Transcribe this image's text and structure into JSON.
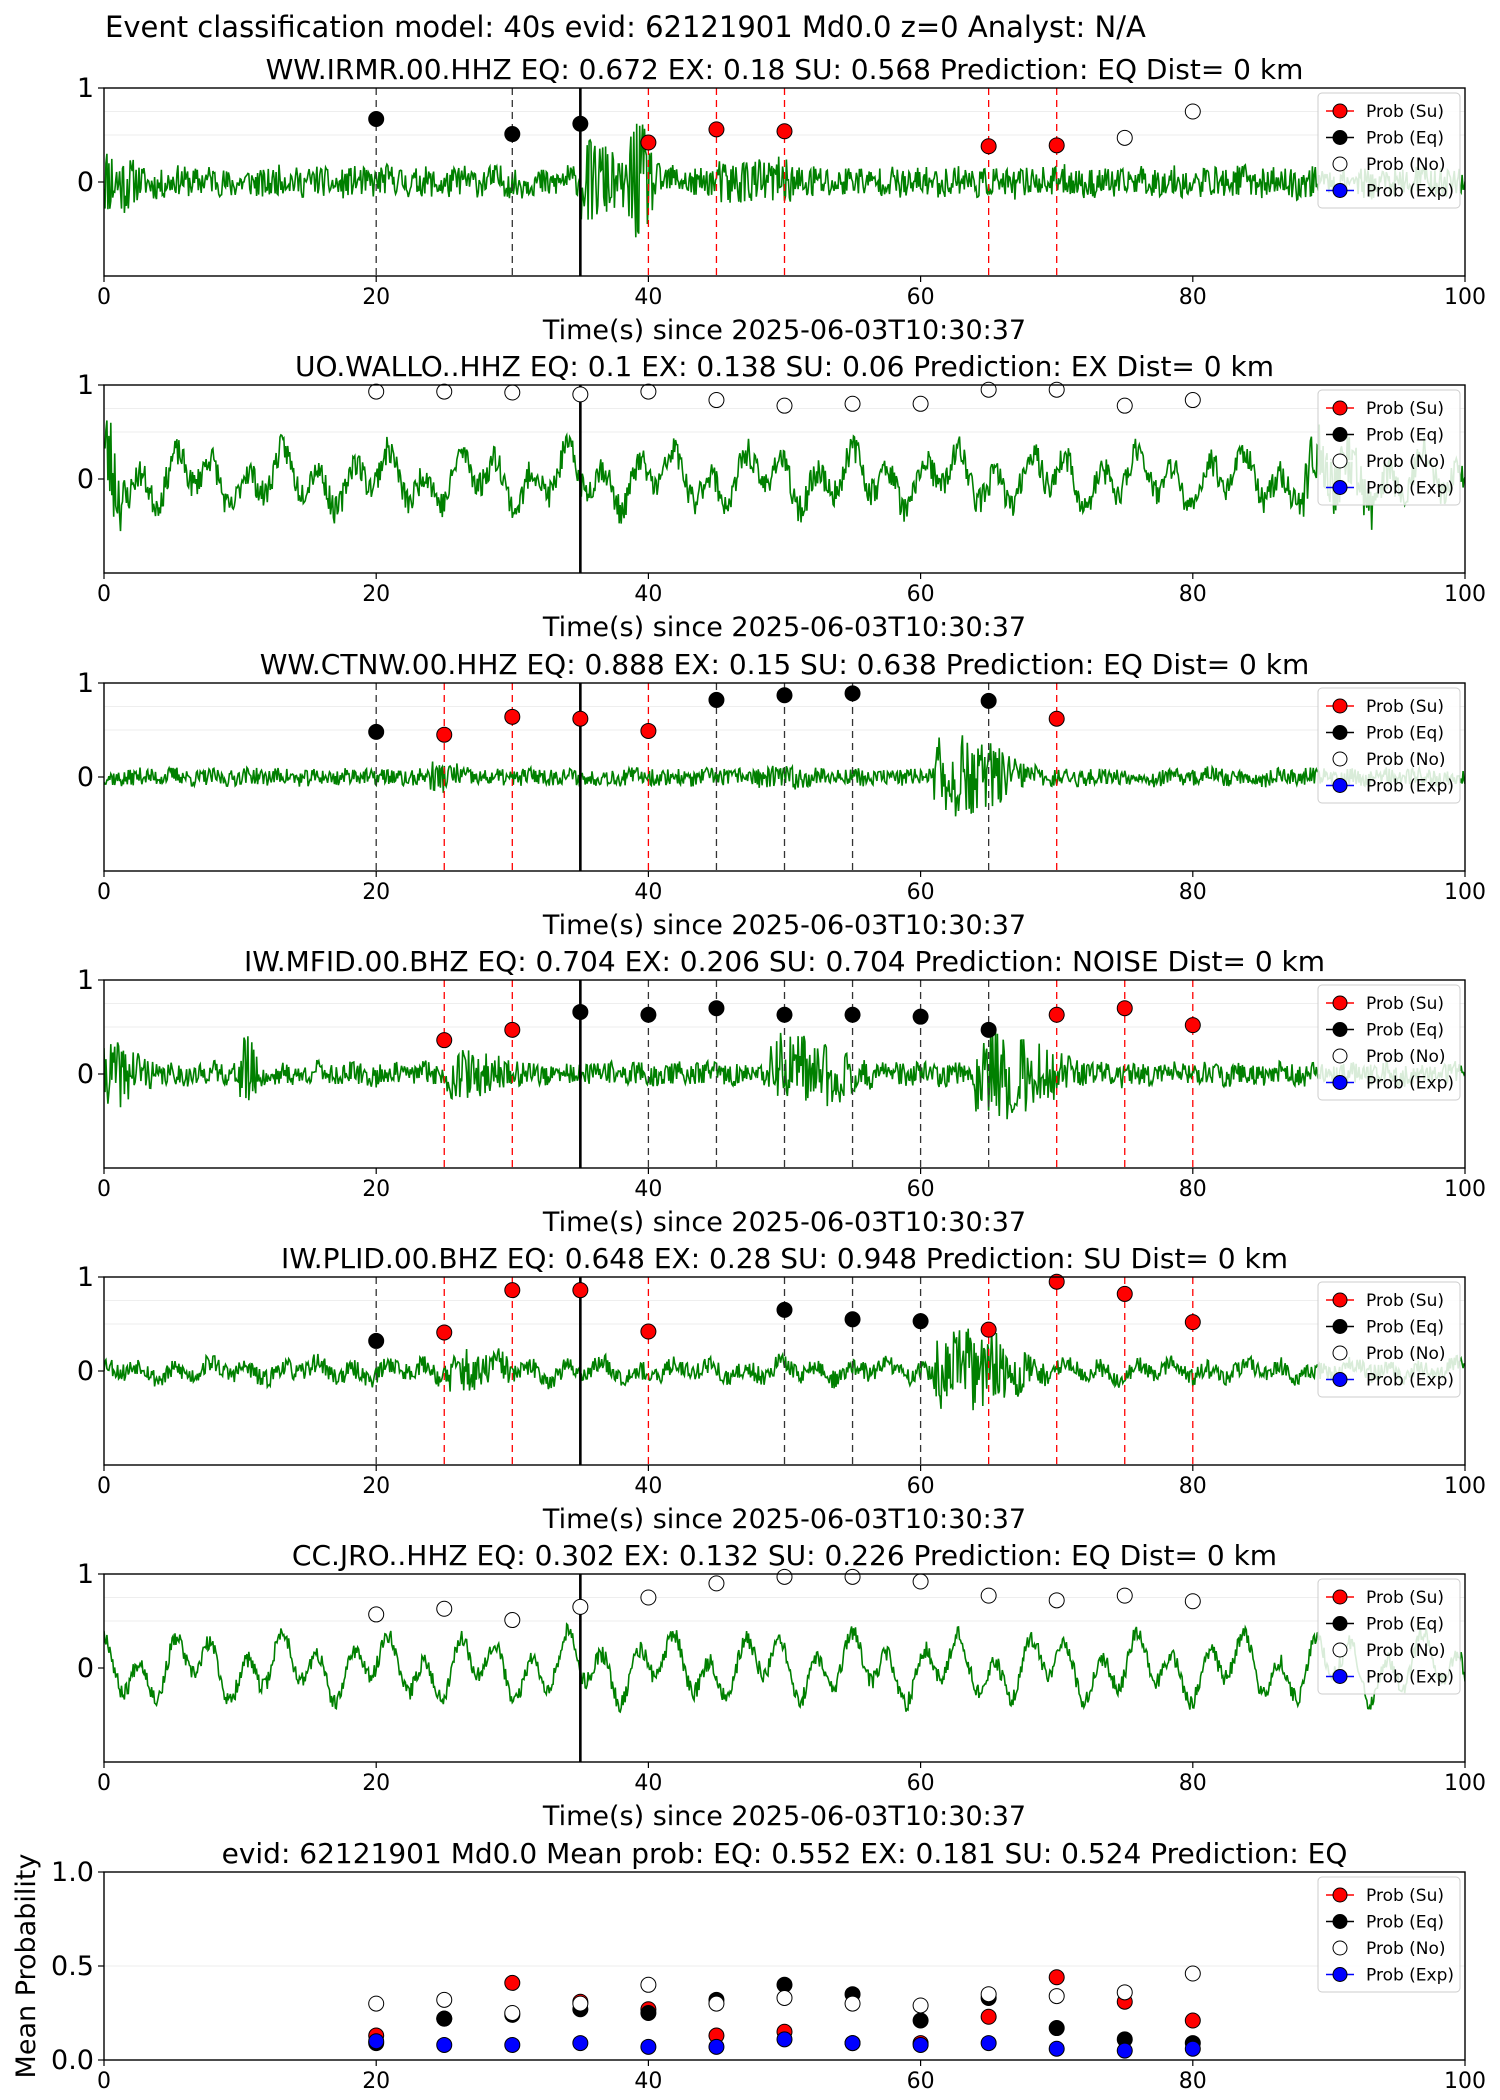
{
  "figure": {
    "suptitle": "Event classification model: 40s evid: 62121901 Md0.0 z=0 Analyst: N/A"
  },
  "legend_labels": [
    "Prob (Su)",
    "Prob (Eq)",
    "Prob (No)",
    "Prob (Exp)"
  ],
  "colors": {
    "su": "#ff0000",
    "eq": "#000000",
    "no": "#ffffff",
    "exp": "#0000ff",
    "wave": "#008000"
  },
  "chart_data": [
    {
      "type": "scatter",
      "title": "WW.IRMR.00.HHZ   EQ: 0.672  EX: 0.18  SU: 0.568   Prediction: EQ    Dist= 0 km",
      "xlabel": "Time(s) since 2025-06-03T10:30:37",
      "xlim": [
        0,
        100
      ],
      "ylim": [
        -1,
        1
      ],
      "xticks": [
        "0",
        "20",
        "40",
        "60",
        "80",
        "100"
      ],
      "yticks": [
        "0",
        "1"
      ],
      "pick_time": 35,
      "points": [
        {
          "x": 20,
          "cls": "eq",
          "y": 0.67
        },
        {
          "x": 30,
          "cls": "eq",
          "y": 0.51
        },
        {
          "x": 35,
          "cls": "eq",
          "y": 0.62
        },
        {
          "x": 40,
          "cls": "su",
          "y": 0.42
        },
        {
          "x": 45,
          "cls": "su",
          "y": 0.56
        },
        {
          "x": 50,
          "cls": "su",
          "y": 0.54
        },
        {
          "x": 65,
          "cls": "su",
          "y": 0.38
        },
        {
          "x": 70,
          "cls": "su",
          "y": 0.39
        },
        {
          "x": 75,
          "cls": "no",
          "y": 0.47
        },
        {
          "x": 80,
          "cls": "no",
          "y": 0.75
        }
      ],
      "waveform": {
        "seed": 11,
        "base": 0.06,
        "noise": 0.1,
        "osc": 0.03,
        "bursts": [
          [
            0,
            3,
            0.35
          ],
          [
            35,
            4,
            0.45
          ],
          [
            38.5,
            2.5,
            0.8
          ],
          [
            45,
            10,
            0.15
          ]
        ]
      }
    },
    {
      "type": "scatter",
      "title": "UO.WALLO..HHZ   EQ: 0.1  EX: 0.138  SU: 0.06   Prediction: EX    Dist= 0 km",
      "xlabel": "Time(s) since 2025-06-03T10:30:37",
      "xlim": [
        0,
        100
      ],
      "ylim": [
        -1,
        1
      ],
      "xticks": [
        "0",
        "20",
        "40",
        "60",
        "80",
        "100"
      ],
      "yticks": [
        "0",
        "1"
      ],
      "pick_time": 35,
      "points": [
        {
          "x": 20,
          "cls": "no",
          "y": 0.93
        },
        {
          "x": 25,
          "cls": "no",
          "y": 0.93
        },
        {
          "x": 30,
          "cls": "no",
          "y": 0.92
        },
        {
          "x": 35,
          "cls": "no",
          "y": 0.9
        },
        {
          "x": 40,
          "cls": "no",
          "y": 0.93
        },
        {
          "x": 45,
          "cls": "no",
          "y": 0.84
        },
        {
          "x": 50,
          "cls": "no",
          "y": 0.78
        },
        {
          "x": 55,
          "cls": "no",
          "y": 0.8
        },
        {
          "x": 60,
          "cls": "no",
          "y": 0.8
        },
        {
          "x": 65,
          "cls": "no",
          "y": 0.95
        },
        {
          "x": 70,
          "cls": "no",
          "y": 0.95
        },
        {
          "x": 75,
          "cls": "no",
          "y": 0.78
        },
        {
          "x": 80,
          "cls": "no",
          "y": 0.84
        }
      ],
      "waveform": {
        "seed": 23,
        "base": 0.05,
        "noise": 0.1,
        "osc": 0.28,
        "bursts": [
          [
            0,
            2,
            0.6
          ],
          [
            88,
            8,
            0.25
          ]
        ]
      }
    },
    {
      "type": "scatter",
      "title": "WW.CTNW.00.HHZ   EQ: 0.888  EX: 0.15  SU: 0.638   Prediction: EQ    Dist= 0 km",
      "xlabel": "Time(s) since 2025-06-03T10:30:37",
      "xlim": [
        0,
        100
      ],
      "ylim": [
        -1,
        1
      ],
      "xticks": [
        "0",
        "20",
        "40",
        "60",
        "80",
        "100"
      ],
      "yticks": [
        "0",
        "1"
      ],
      "pick_time": 35,
      "points": [
        {
          "x": 20,
          "cls": "eq",
          "y": 0.48
        },
        {
          "x": 25,
          "cls": "su",
          "y": 0.45
        },
        {
          "x": 30,
          "cls": "su",
          "y": 0.64
        },
        {
          "x": 35,
          "cls": "su",
          "y": 0.62
        },
        {
          "x": 40,
          "cls": "su",
          "y": 0.49
        },
        {
          "x": 45,
          "cls": "eq",
          "y": 0.82
        },
        {
          "x": 50,
          "cls": "eq",
          "y": 0.87
        },
        {
          "x": 55,
          "cls": "eq",
          "y": 0.89
        },
        {
          "x": 65,
          "cls": "eq",
          "y": 0.81
        },
        {
          "x": 70,
          "cls": "su",
          "y": 0.62
        }
      ],
      "waveform": {
        "seed": 37,
        "base": 0.04,
        "noise": 0.05,
        "osc": 0.02,
        "bursts": [
          [
            24,
            3,
            0.12
          ],
          [
            48,
            6,
            0.06
          ],
          [
            61,
            8,
            0.55
          ]
        ]
      }
    },
    {
      "type": "scatter",
      "title": "IW.MFID.00.BHZ   EQ: 0.704  EX: 0.206  SU: 0.704   Prediction: NOISE    Dist= 0 km",
      "xlabel": "Time(s) since 2025-06-03T10:30:37",
      "xlim": [
        0,
        100
      ],
      "ylim": [
        -1,
        1
      ],
      "xticks": [
        "0",
        "20",
        "40",
        "60",
        "80",
        "100"
      ],
      "yticks": [
        "0",
        "1"
      ],
      "pick_time": 35,
      "points": [
        {
          "x": 25,
          "cls": "su",
          "y": 0.36
        },
        {
          "x": 30,
          "cls": "su",
          "y": 0.47
        },
        {
          "x": 35,
          "cls": "eq",
          "y": 0.66
        },
        {
          "x": 40,
          "cls": "eq",
          "y": 0.63
        },
        {
          "x": 45,
          "cls": "eq",
          "y": 0.7
        },
        {
          "x": 50,
          "cls": "eq",
          "y": 0.63
        },
        {
          "x": 55,
          "cls": "eq",
          "y": 0.63
        },
        {
          "x": 60,
          "cls": "eq",
          "y": 0.61
        },
        {
          "x": 65,
          "cls": "eq",
          "y": 0.47
        },
        {
          "x": 70,
          "cls": "su",
          "y": 0.63
        },
        {
          "x": 75,
          "cls": "su",
          "y": 0.7
        },
        {
          "x": 80,
          "cls": "su",
          "y": 0.52
        }
      ],
      "waveform": {
        "seed": 41,
        "base": 0.06,
        "noise": 0.06,
        "osc": 0.03,
        "bursts": [
          [
            0,
            4,
            0.35
          ],
          [
            10,
            1.5,
            0.5
          ],
          [
            25,
            6,
            0.22
          ],
          [
            49,
            8,
            0.45
          ],
          [
            64,
            8,
            0.55
          ]
        ]
      }
    },
    {
      "type": "scatter",
      "title": "IW.PLID.00.BHZ   EQ: 0.648  EX: 0.28  SU: 0.948   Prediction: SU    Dist= 0 km",
      "xlabel": "Time(s) since 2025-06-03T10:30:37",
      "xlim": [
        0,
        100
      ],
      "ylim": [
        -1,
        1
      ],
      "xticks": [
        "0",
        "20",
        "40",
        "60",
        "80",
        "100"
      ],
      "yticks": [
        "0",
        "1"
      ],
      "pick_time": 35,
      "points": [
        {
          "x": 20,
          "cls": "eq",
          "y": 0.32
        },
        {
          "x": 25,
          "cls": "su",
          "y": 0.41
        },
        {
          "x": 30,
          "cls": "su",
          "y": 0.86
        },
        {
          "x": 35,
          "cls": "su",
          "y": 0.86
        },
        {
          "x": 40,
          "cls": "su",
          "y": 0.42
        },
        {
          "x": 50,
          "cls": "eq",
          "y": 0.65
        },
        {
          "x": 55,
          "cls": "eq",
          "y": 0.55
        },
        {
          "x": 60,
          "cls": "eq",
          "y": 0.53
        },
        {
          "x": 65,
          "cls": "su",
          "y": 0.44
        },
        {
          "x": 70,
          "cls": "su",
          "y": 0.95
        },
        {
          "x": 75,
          "cls": "su",
          "y": 0.82
        },
        {
          "x": 80,
          "cls": "su",
          "y": 0.52
        }
      ],
      "waveform": {
        "seed": 53,
        "base": 0.05,
        "noise": 0.05,
        "osc": 0.08,
        "bursts": [
          [
            25,
            6,
            0.2
          ],
          [
            61,
            9,
            0.5
          ]
        ]
      }
    },
    {
      "type": "scatter",
      "title": "CC.JRO..HHZ   EQ: 0.302  EX: 0.132  SU: 0.226   Prediction: EQ    Dist= 0 km",
      "xlabel": "Time(s) since 2025-06-03T10:30:37",
      "xlim": [
        0,
        100
      ],
      "ylim": [
        -1,
        1
      ],
      "xticks": [
        "0",
        "20",
        "40",
        "60",
        "80",
        "100"
      ],
      "yticks": [
        "0",
        "1"
      ],
      "pick_time": 35,
      "points": [
        {
          "x": 20,
          "cls": "no",
          "y": 0.57
        },
        {
          "x": 25,
          "cls": "no",
          "y": 0.63
        },
        {
          "x": 30,
          "cls": "no",
          "y": 0.51
        },
        {
          "x": 35,
          "cls": "no",
          "y": 0.65
        },
        {
          "x": 40,
          "cls": "no",
          "y": 0.75
        },
        {
          "x": 45,
          "cls": "no",
          "y": 0.9
        },
        {
          "x": 50,
          "cls": "no",
          "y": 0.97
        },
        {
          "x": 55,
          "cls": "no",
          "y": 0.97
        },
        {
          "x": 60,
          "cls": "no",
          "y": 0.92
        },
        {
          "x": 65,
          "cls": "no",
          "y": 0.77
        },
        {
          "x": 70,
          "cls": "no",
          "y": 0.72
        },
        {
          "x": 75,
          "cls": "no",
          "y": 0.77
        },
        {
          "x": 80,
          "cls": "no",
          "y": 0.71
        }
      ],
      "waveform": {
        "seed": 67,
        "base": 0.04,
        "noise": 0.05,
        "osc": 0.32,
        "bursts": []
      }
    },
    {
      "type": "scatter",
      "title": "evid: 62121901  Md0.0   Mean prob:   EQ: 0.552  EX: 0.181  SU: 0.524   Prediction: EQ",
      "xlabel": "",
      "ylabel": "Mean Probability",
      "xlim": [
        0,
        100
      ],
      "ylim": [
        0,
        1
      ],
      "xticks": [
        "0",
        "20",
        "40",
        "60",
        "80",
        "100"
      ],
      "yticks": [
        "0.0",
        "0.5",
        "1.0"
      ],
      "x": [
        20,
        25,
        30,
        35,
        40,
        45,
        50,
        55,
        60,
        65,
        70,
        75,
        80
      ],
      "series": [
        {
          "name": "Prob (Su)",
          "cls": "su",
          "values": [
            0.13,
            0.22,
            0.41,
            0.31,
            0.27,
            0.13,
            0.15,
            0.09,
            0.09,
            0.23,
            0.44,
            0.31,
            0.21
          ]
        },
        {
          "name": "Prob (Eq)",
          "cls": "eq",
          "values": [
            0.09,
            0.22,
            0.24,
            0.27,
            0.25,
            0.32,
            0.4,
            0.35,
            0.21,
            0.33,
            0.17,
            0.11,
            0.09
          ]
        },
        {
          "name": "Prob (No)",
          "cls": "no",
          "values": [
            0.3,
            0.32,
            0.25,
            0.3,
            0.4,
            0.3,
            0.33,
            0.3,
            0.29,
            0.35,
            0.34,
            0.36,
            0.46
          ]
        },
        {
          "name": "Prob (Exp)",
          "cls": "exp",
          "values": [
            0.1,
            0.08,
            0.08,
            0.09,
            0.07,
            0.07,
            0.11,
            0.09,
            0.08,
            0.09,
            0.06,
            0.05,
            0.06
          ]
        }
      ]
    }
  ]
}
